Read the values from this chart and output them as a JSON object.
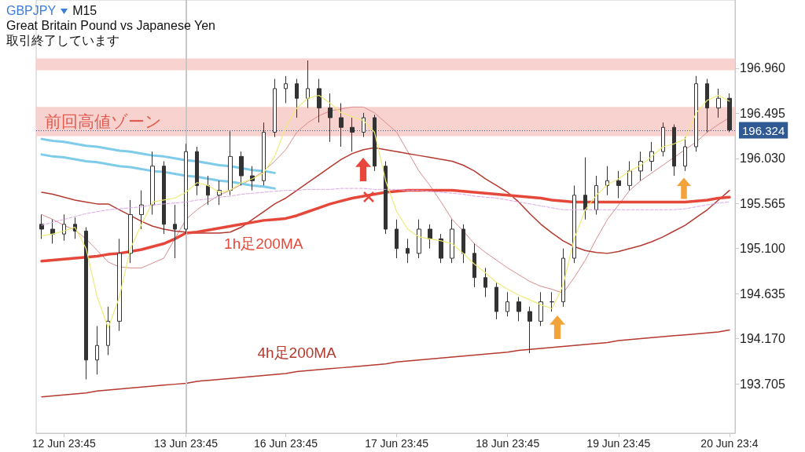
{
  "chart_data": {
    "type": "candlestick",
    "title": "GBPJPY",
    "subtitle": "Great Britain Pound vs Japanese Yen",
    "annotations": [
      "M15",
      "取引終了しています"
    ],
    "categories": [
      null,
      null,
      "12 Jun 23:45",
      null,
      null,
      null,
      null,
      null,
      null,
      null,
      null,
      null,
      null,
      "13 Jun 23:45",
      null,
      null,
      null,
      null,
      null,
      null,
      null,
      null,
      "16 Jun 23:45",
      null,
      null,
      null,
      null,
      null,
      null,
      null,
      null,
      null,
      "17 Jun 23:45",
      null,
      null,
      null,
      null,
      null,
      null,
      null,
      null,
      null,
      "18 Jun 23:45",
      null,
      null,
      null,
      null,
      null,
      null,
      null,
      null,
      null,
      "19 Jun 23:45",
      null,
      null,
      null,
      null,
      null,
      null,
      null,
      null,
      null,
      "20 Jun 23:4"
    ],
    "color": "#333333",
    "ohlc": [
      [
        195.35,
        195.45,
        195.2,
        195.3
      ],
      [
        195.3,
        195.4,
        195.15,
        195.25
      ],
      [
        195.25,
        195.45,
        195.18,
        195.35
      ],
      [
        195.35,
        195.42,
        195.2,
        195.28
      ],
      [
        195.28,
        195.32,
        193.75,
        193.95
      ],
      [
        193.95,
        194.3,
        193.8,
        194.1
      ],
      [
        194.1,
        194.5,
        194.0,
        194.35
      ],
      [
        194.35,
        195.2,
        194.25,
        195.05
      ],
      [
        195.05,
        195.6,
        194.95,
        195.45
      ],
      [
        195.45,
        195.7,
        195.3,
        195.55
      ],
      [
        195.55,
        196.1,
        195.45,
        195.95
      ],
      [
        195.95,
        196.0,
        195.25,
        195.35
      ],
      [
        195.35,
        195.55,
        195.0,
        195.3
      ],
      [
        195.3,
        196.18,
        195.25,
        196.1
      ],
      [
        196.1,
        196.15,
        195.65,
        195.75
      ],
      [
        195.75,
        195.85,
        195.55,
        195.65
      ],
      [
        195.65,
        195.8,
        195.55,
        195.7
      ],
      [
        195.7,
        196.31,
        195.65,
        196.05
      ],
      [
        196.05,
        196.1,
        195.75,
        195.85
      ],
      [
        195.85,
        195.95,
        195.7,
        195.8
      ],
      [
        195.8,
        196.4,
        195.75,
        196.3
      ],
      [
        196.3,
        196.85,
        196.25,
        196.75
      ],
      [
        196.75,
        196.88,
        196.6,
        196.8
      ],
      [
        196.8,
        196.85,
        196.45,
        196.65
      ],
      [
        196.65,
        197.04,
        196.55,
        196.75
      ],
      [
        196.75,
        196.85,
        196.4,
        196.55
      ],
      [
        196.55,
        196.7,
        196.2,
        196.45
      ],
      [
        196.45,
        196.6,
        196.15,
        196.35
      ],
      [
        196.35,
        196.45,
        196.1,
        196.3
      ],
      [
        196.3,
        196.5,
        196.25,
        196.45
      ],
      [
        196.45,
        196.48,
        195.9,
        195.95
      ],
      [
        195.95,
        196.0,
        195.25,
        195.3
      ],
      [
        195.3,
        195.4,
        195.0,
        195.1
      ],
      [
        195.1,
        195.2,
        194.95,
        195.05
      ],
      [
        195.05,
        195.4,
        195.0,
        195.3
      ],
      [
        195.3,
        195.35,
        195.1,
        195.2
      ],
      [
        195.2,
        195.25,
        194.95,
        195.0
      ],
      [
        195.0,
        195.4,
        194.95,
        195.3
      ],
      [
        195.3,
        195.35,
        194.95,
        195.05
      ],
      [
        195.05,
        195.15,
        194.7,
        194.8
      ],
      [
        194.8,
        194.9,
        194.6,
        194.7
      ],
      [
        194.7,
        194.75,
        194.37,
        194.45
      ],
      [
        194.45,
        194.65,
        194.4,
        194.55
      ],
      [
        194.55,
        194.6,
        194.35,
        194.45
      ],
      [
        194.45,
        194.5,
        194.02,
        194.35
      ],
      [
        194.35,
        194.65,
        194.3,
        194.55
      ],
      [
        194.55,
        194.65,
        194.45,
        194.55
      ],
      [
        194.55,
        195.1,
        194.5,
        195.0
      ],
      [
        195.0,
        195.75,
        194.95,
        195.65
      ],
      [
        195.65,
        196.04,
        195.4,
        195.5
      ],
      [
        195.5,
        195.85,
        195.45,
        195.75
      ],
      [
        195.75,
        195.95,
        195.65,
        195.8
      ],
      [
        195.8,
        195.9,
        195.62,
        195.75
      ],
      [
        195.75,
        196.0,
        195.7,
        195.9
      ],
      [
        195.9,
        196.1,
        195.8,
        196.0
      ],
      [
        196.0,
        196.2,
        195.9,
        196.1
      ],
      [
        196.1,
        196.4,
        196.05,
        196.35
      ],
      [
        196.35,
        196.38,
        195.85,
        195.95
      ],
      [
        195.95,
        196.25,
        195.9,
        196.15
      ],
      [
        196.15,
        196.88,
        196.1,
        196.8
      ],
      [
        196.8,
        196.85,
        196.3,
        196.55
      ],
      [
        196.55,
        196.75,
        196.45,
        196.65
      ],
      [
        196.65,
        196.7,
        196.3,
        196.324
      ]
    ],
    "series": [
      {
        "type": "line",
        "color": "#d98c8c",
        "values": [
          195.45,
          195.4,
          195.34,
          195.29,
          195.2,
          195.08,
          194.96,
          194.91,
          194.9,
          194.9,
          194.95,
          195.0,
          195.2,
          195.4,
          195.5,
          195.58,
          195.65,
          195.7,
          195.76,
          195.82,
          195.9,
          196.0,
          196.12,
          196.3,
          196.4,
          196.47,
          196.52,
          196.54,
          196.56,
          196.56,
          196.5,
          196.4,
          196.3,
          196.1,
          195.9,
          195.75,
          195.58,
          195.4,
          195.28,
          195.15,
          195.06,
          194.98,
          194.9,
          194.83,
          194.76,
          194.71,
          194.68,
          194.64,
          194.8,
          194.98,
          195.2,
          195.4,
          195.55,
          195.7,
          195.8,
          195.88,
          195.96,
          196.04,
          196.12,
          196.2,
          196.3,
          196.38,
          196.45
        ]
      },
      {
        "type": "line",
        "color": "#b5392f",
        "values": [
          195.68,
          195.66,
          195.63,
          195.6,
          195.58,
          195.56,
          195.56,
          195.5,
          195.44,
          195.38,
          195.33,
          195.3,
          195.28,
          195.27,
          195.26,
          195.26,
          195.26,
          195.27,
          195.32,
          195.4,
          195.48,
          195.56,
          195.62,
          195.7,
          195.78,
          195.86,
          195.94,
          196.02,
          196.08,
          196.12,
          196.14,
          196.12,
          196.1,
          196.08,
          196.06,
          196.04,
          196.02,
          196.0,
          195.96,
          195.9,
          195.82,
          195.75,
          195.68,
          195.58,
          195.46,
          195.35,
          195.26,
          195.18,
          195.12,
          195.08,
          195.06,
          195.05,
          195.07,
          195.1,
          195.13,
          195.17,
          195.22,
          195.28,
          195.34,
          195.42,
          195.5,
          195.6,
          195.7
        ]
      },
      {
        "type": "line",
        "color": "#d9a6e6",
        "line_style": "dashed",
        "values": [
          195.34,
          195.37,
          195.4,
          195.43,
          195.46,
          195.48,
          195.5,
          195.51,
          195.52,
          195.53,
          195.55,
          195.56,
          195.57,
          195.58,
          195.6,
          195.61,
          195.63,
          195.64,
          195.66,
          195.67,
          195.68,
          195.69,
          195.7,
          195.7,
          195.71,
          195.71,
          195.71,
          195.72,
          195.72,
          195.72,
          195.71,
          195.71,
          195.71,
          195.7,
          195.7,
          195.69,
          195.68,
          195.67,
          195.66,
          195.64,
          195.63,
          195.62,
          195.6,
          195.58,
          195.56,
          195.54,
          195.52,
          195.5,
          195.5,
          195.5,
          195.5,
          195.5,
          195.5,
          195.5,
          195.5,
          195.5,
          195.5,
          195.5,
          195.51,
          195.53,
          195.55,
          195.57,
          195.58
        ]
      },
      {
        "type": "line",
        "name": "1h足200MA",
        "color": "#e5483a",
        "values": [
          194.97,
          194.98,
          194.99,
          195.0,
          195.01,
          195.02,
          195.04,
          195.05,
          195.07,
          195.09,
          195.12,
          195.15,
          195.2,
          195.26,
          195.27,
          195.29,
          195.31,
          195.33,
          195.35,
          195.37,
          195.39,
          195.4,
          195.41,
          195.44,
          195.48,
          195.52,
          195.56,
          195.59,
          195.62,
          195.64,
          195.66,
          195.68,
          195.69,
          195.7,
          195.7,
          195.7,
          195.7,
          195.7,
          195.69,
          195.68,
          195.67,
          195.66,
          195.65,
          195.64,
          195.63,
          195.62,
          195.6,
          195.59,
          195.58,
          195.58,
          195.58,
          195.58,
          195.58,
          195.58,
          195.58,
          195.58,
          195.58,
          195.58,
          195.58,
          195.59,
          195.6,
          195.62,
          195.63
        ]
      },
      {
        "type": "line",
        "name": "4h足200MA",
        "color": "#b5392f",
        "values": [
          193.57,
          193.58,
          193.59,
          193.6,
          193.61,
          193.63,
          193.64,
          193.65,
          193.66,
          193.67,
          193.68,
          193.69,
          193.7,
          193.71,
          193.73,
          193.74,
          193.75,
          193.76,
          193.77,
          193.78,
          193.79,
          193.8,
          193.81,
          193.83,
          193.84,
          193.85,
          193.86,
          193.87,
          193.88,
          193.89,
          193.9,
          193.91,
          193.93,
          193.94,
          193.95,
          193.96,
          193.97,
          193.98,
          193.99,
          194.0,
          194.01,
          194.02,
          194.03,
          194.05,
          194.06,
          194.07,
          194.08,
          194.09,
          194.1,
          194.11,
          194.12,
          194.13,
          194.15,
          194.16,
          194.17,
          194.18,
          194.19,
          194.2,
          194.21,
          194.22,
          194.23,
          194.24,
          194.26
        ]
      },
      {
        "type": "line",
        "color": "#ecec78",
        "values": [
          195.23,
          195.25,
          195.28,
          195.32,
          195.1,
          194.6,
          194.28,
          194.6,
          195.1,
          195.35,
          195.58,
          195.6,
          195.62,
          195.68,
          195.78,
          195.75,
          195.68,
          195.7,
          195.78,
          195.82,
          195.88,
          196.05,
          196.35,
          196.55,
          196.65,
          196.68,
          196.6,
          196.5,
          196.46,
          196.42,
          196.3,
          195.8,
          195.48,
          195.3,
          195.22,
          195.2,
          195.18,
          195.15,
          195.05,
          194.94,
          194.85,
          194.75,
          194.68,
          194.62,
          194.57,
          194.52,
          194.48,
          194.72,
          195.2,
          195.5,
          195.65,
          195.76,
          195.82,
          195.9,
          195.96,
          196.05,
          196.15,
          196.18,
          196.23,
          196.5,
          196.63,
          196.68,
          196.62
        ]
      },
      {
        "type": "line",
        "color": "#7ecbea",
        "values": [
          196.23,
          196.21,
          196.2,
          196.18,
          196.16,
          196.15,
          196.13,
          196.11,
          196.1,
          196.08,
          196.06,
          196.05,
          196.03,
          196.01,
          196.0,
          195.98,
          195.96,
          195.95,
          195.93,
          195.91,
          195.9,
          195.88,
          null,
          null,
          null,
          null,
          null,
          null,
          null,
          null,
          null,
          null,
          null,
          null,
          null,
          null,
          null,
          null,
          null,
          null,
          null,
          null,
          null,
          null,
          null,
          null,
          null,
          null,
          null,
          null,
          null,
          null,
          null,
          null,
          null,
          null,
          null,
          null,
          null,
          null,
          null,
          null,
          null
        ]
      },
      {
        "type": "line",
        "color": "#7ecbea",
        "values": [
          196.07,
          196.05,
          196.04,
          196.02,
          196.0,
          195.99,
          195.97,
          195.95,
          195.94,
          195.92,
          195.9,
          195.89,
          195.87,
          195.85,
          195.84,
          195.82,
          195.8,
          195.79,
          195.77,
          195.75,
          195.74,
          195.72,
          null,
          null,
          null,
          null,
          null,
          null,
          null,
          null,
          null,
          null,
          null,
          null,
          null,
          null,
          null,
          null,
          null,
          null,
          null,
          null,
          null,
          null,
          null,
          null,
          null,
          null,
          null,
          null,
          null,
          null,
          null,
          null,
          null,
          null,
          null,
          null,
          null,
          null,
          null,
          null,
          null
        ]
      }
    ],
    "ylim": [
      193.195,
      197.664
    ],
    "yticks": [
      {
        "value": 193.705,
        "label": "193.705"
      },
      {
        "value": 194.17,
        "label": "194.170"
      },
      {
        "value": 194.635,
        "label": "194.635"
      },
      {
        "value": 195.1,
        "label": "195.100"
      },
      {
        "value": 195.565,
        "label": "195.565"
      },
      {
        "value": 196.03,
        "label": "196.030"
      },
      {
        "value": 196.495,
        "label": "196.495"
      },
      {
        "value": 196.96,
        "label": "196.960"
      }
    ],
    "ref_lines": [
      {
        "axis": "y",
        "value": 196.324,
        "label": "196.324",
        "color": "#2f5a94",
        "line_style": "dotted"
      },
      {
        "axis": "x",
        "value": "13 Jun 23:45",
        "color": "#c8c8c8"
      }
    ],
    "bands": [
      {
        "axis": "y",
        "from": 196.26,
        "to": 196.56,
        "label": "前回高値ゾーン",
        "color": "#f6cdca"
      },
      {
        "axis": "y",
        "from": 196.94,
        "to": 197.06,
        "color": "#f6cdca"
      }
    ]
  }
}
